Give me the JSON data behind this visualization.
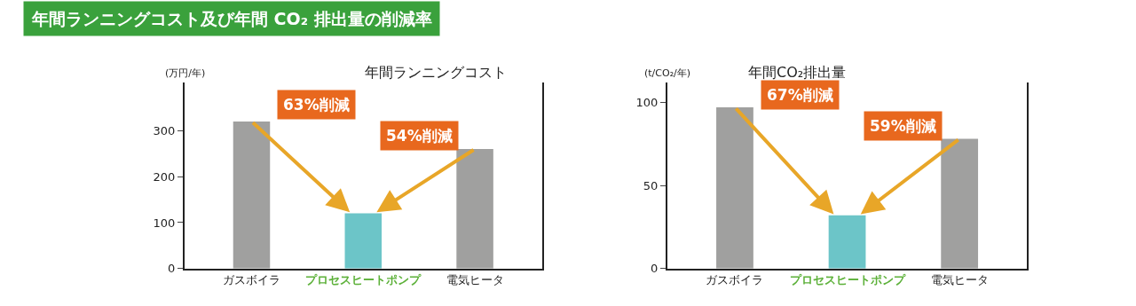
{
  "chart_data": [
    {
      "type": "other",
      "title": "年間ランニングコスト及び年間 CO₂ 排出量の削減率"
    },
    {
      "type": "bar",
      "title": "年間ランニングコスト",
      "ylabel": "(万円/年)",
      "categories": [
        "ガスボイラ",
        "プロセスヒートポンプ",
        "電気ヒータ"
      ],
      "values": [
        320,
        120,
        260
      ],
      "colors": [
        "#a0a09f",
        "#6cc5c8",
        "#a0a09f"
      ],
      "ylim": [
        0,
        405
      ],
      "yticks": [
        0,
        100,
        200,
        300
      ],
      "annotations": [
        "63%削減",
        "54%削減"
      ]
    },
    {
      "type": "bar",
      "title": "年間CO₂排出量",
      "ylabel": "(t/CO₂/年)",
      "categories": [
        "ガスボイラ",
        "プロセスヒートポンプ",
        "電気ヒータ"
      ],
      "values": [
        97,
        32,
        78
      ],
      "colors": [
        "#a0a09f",
        "#6cc5c8",
        "#a0a09f"
      ],
      "ylim": [
        0,
        112
      ],
      "yticks": [
        0,
        50,
        100
      ],
      "annotations": [
        "67%削減",
        "59%削減"
      ]
    }
  ]
}
